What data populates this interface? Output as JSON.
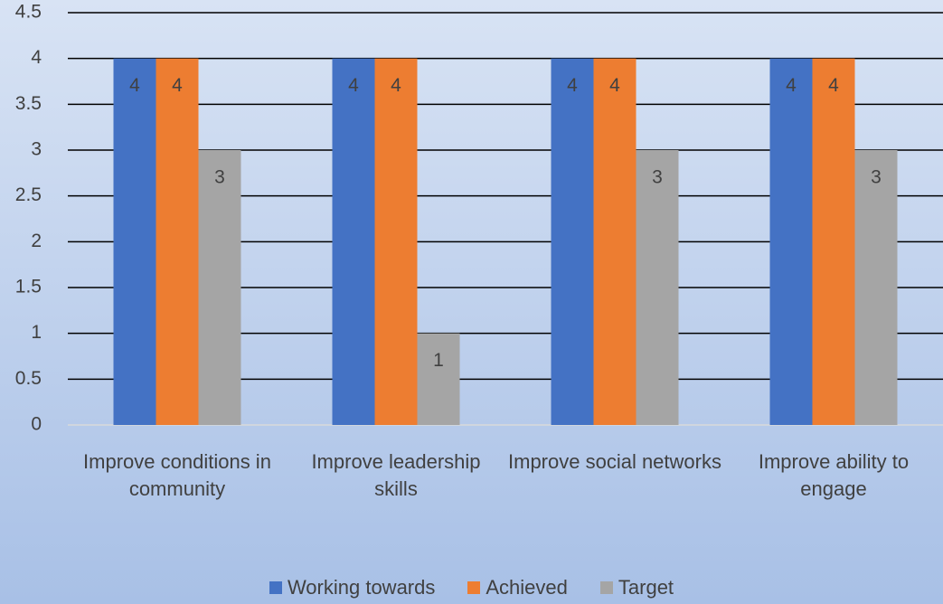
{
  "chart_data": {
    "type": "bar",
    "categories": [
      "Improve conditions in community",
      "Improve leadership skills",
      "Improve social networks",
      "Improve ability to engage"
    ],
    "series": [
      {
        "name": "Working towards",
        "color": "#4472c4",
        "values": [
          4,
          4,
          4,
          4
        ]
      },
      {
        "name": "Achieved",
        "color": "#ed7d31",
        "values": [
          4,
          4,
          4,
          4
        ]
      },
      {
        "name": "Target",
        "color": "#a5a5a5",
        "values": [
          3,
          1,
          3,
          3
        ]
      }
    ],
    "ylim": [
      0,
      4.5
    ],
    "yticks": [
      0,
      0.5,
      1,
      1.5,
      2,
      2.5,
      3,
      3.5,
      4,
      4.5
    ],
    "grid": true,
    "legend": "bottom"
  }
}
